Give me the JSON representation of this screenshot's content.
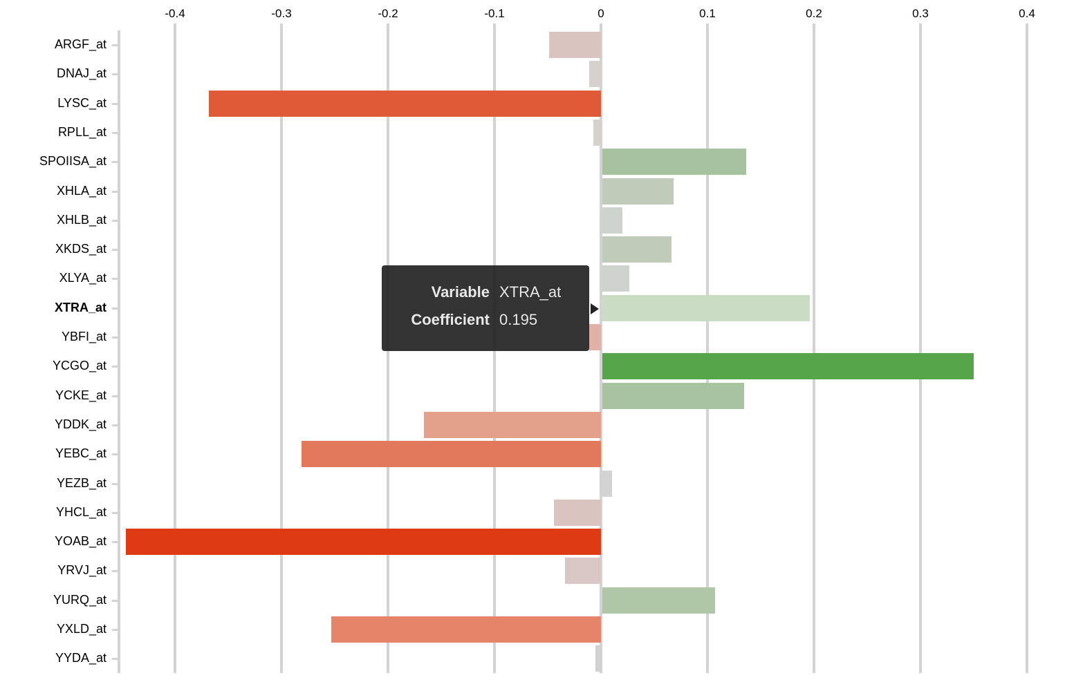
{
  "chart_data": {
    "type": "bar",
    "orientation": "horizontal",
    "title": "",
    "xlabel": "",
    "ylabel": "",
    "xlim": [
      -0.45,
      0.4
    ],
    "x_ticks": [
      "-0.4",
      "-0.3",
      "-0.2",
      "-0.1",
      "0",
      "0.1",
      "0.2",
      "0.3",
      "0.4"
    ],
    "grid": true,
    "categories": [
      "ARGF_at",
      "DNAJ_at",
      "LYSC_at",
      "RPLL_at",
      "SPOIISA_at",
      "XHLA_at",
      "XHLB_at",
      "XKDS_at",
      "XLYA_at",
      "XTRA_at",
      "YBFI_at",
      "YCGO_at",
      "YCKE_at",
      "YDDK_at",
      "YEBC_at",
      "YEZB_at",
      "YHCL_at",
      "YOAB_at",
      "YRVJ_at",
      "YURQ_at",
      "YXLD_at",
      "YYDA_at"
    ],
    "values": [
      -0.049,
      -0.011,
      -0.368,
      -0.007,
      0.135,
      0.067,
      0.019,
      0.065,
      0.025,
      0.195,
      -0.012,
      0.349,
      0.133,
      -0.166,
      -0.281,
      0.009,
      -0.044,
      -0.446,
      -0.034,
      0.106,
      -0.253,
      -0.005
    ],
    "colors": [
      "#dac4bf",
      "#d6d1cf",
      "#e05a37",
      "#d6d1cf",
      "#a7c29e",
      "#c0cbb9",
      "#cfd3cd",
      "#c0cbb9",
      "#cfd3cd",
      "#c9ddc5",
      "#e2b1a5",
      "#54a648",
      "#a8c39f",
      "#e3a08a",
      "#e3795b",
      "#d3d3d3",
      "#dac4bf",
      "#de3a13",
      "#d8c7c5",
      "#afc7a6",
      "#e58468",
      "#d3d1cf"
    ],
    "highlighted": "XTRA_at"
  },
  "tooltip": {
    "variable_label": "Variable",
    "variable_value": "XTRA_at",
    "coefficient_label": "Coefficient",
    "coefficient_value": "0.195"
  }
}
